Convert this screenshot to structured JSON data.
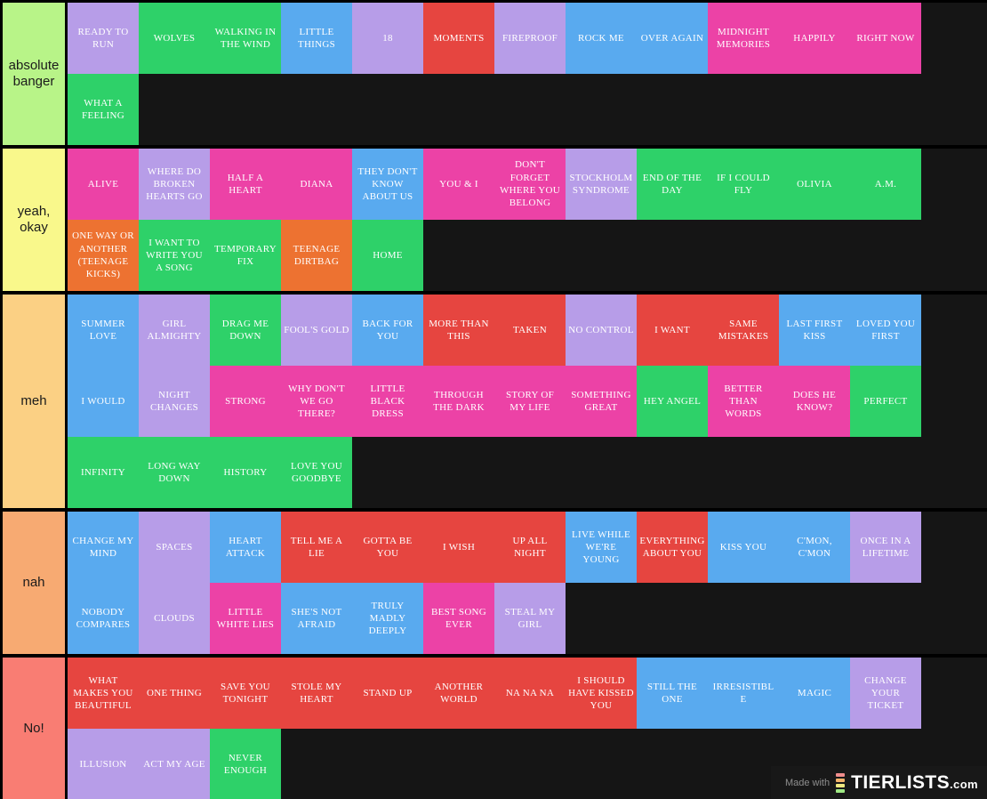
{
  "page": {
    "background": "#151515",
    "separator": "#000000"
  },
  "tile_colors": {
    "lavender": "#b79de8",
    "green": "#2ed169",
    "blue": "#59aaef",
    "pink": "#ec42a6",
    "red": "#e64540",
    "orange": "#ed7231"
  },
  "tiers": [
    {
      "label": "absolute banger",
      "color": "#b8f488",
      "tiles": [
        {
          "t": "READY TO RUN",
          "c": "lavender"
        },
        {
          "t": "WOLVES",
          "c": "green"
        },
        {
          "t": "WALKING IN THE WIND",
          "c": "green"
        },
        {
          "t": "LITTLE THINGS",
          "c": "blue"
        },
        {
          "t": "18",
          "c": "lavender"
        },
        {
          "t": "MOMENTS",
          "c": "red"
        },
        {
          "t": "FIREPROOF",
          "c": "lavender"
        },
        {
          "t": "ROCK ME",
          "c": "blue"
        },
        {
          "t": "OVER AGAIN",
          "c": "blue"
        },
        {
          "t": "MIDNIGHT MEMORIES",
          "c": "pink"
        },
        {
          "t": "HAPPILY",
          "c": "pink"
        },
        {
          "t": "RIGHT NOW",
          "c": "pink"
        },
        {
          "t": "WHAT A FEELING",
          "c": "green"
        }
      ]
    },
    {
      "label": "yeah, okay",
      "color": "#f9f88b",
      "tiles": [
        {
          "t": "ALIVE",
          "c": "pink"
        },
        {
          "t": "WHERE DO BROKEN HEARTS GO",
          "c": "lavender"
        },
        {
          "t": "HALF A HEART",
          "c": "pink"
        },
        {
          "t": "DIANA",
          "c": "pink"
        },
        {
          "t": "THEY DON'T KNOW ABOUT US",
          "c": "blue"
        },
        {
          "t": "YOU & I",
          "c": "pink"
        },
        {
          "t": "DON'T FORGET WHERE YOU BELONG",
          "c": "pink"
        },
        {
          "t": "STOCKHOLM SYNDROME",
          "c": "lavender"
        },
        {
          "t": "END OF THE DAY",
          "c": "green"
        },
        {
          "t": "IF I COULD FLY",
          "c": "green"
        },
        {
          "t": "OLIVIA",
          "c": "green"
        },
        {
          "t": "A.M.",
          "c": "green"
        },
        {
          "t": "ONE WAY OR ANOTHER (TEENAGE KICKS)",
          "c": "orange"
        },
        {
          "t": "I WANT TO WRITE YOU A SONG",
          "c": "green"
        },
        {
          "t": "TEMPORARY FIX",
          "c": "green"
        },
        {
          "t": "TEENAGE DIRTBAG",
          "c": "orange"
        },
        {
          "t": "HOME",
          "c": "green"
        }
      ]
    },
    {
      "label": "meh",
      "color": "#fbd084",
      "tiles": [
        {
          "t": "SUMMER LOVE",
          "c": "blue"
        },
        {
          "t": "GIRL ALMIGHTY",
          "c": "lavender"
        },
        {
          "t": "DRAG ME DOWN",
          "c": "green"
        },
        {
          "t": "FOOL'S GOLD",
          "c": "lavender"
        },
        {
          "t": "BACK FOR YOU",
          "c": "blue"
        },
        {
          "t": "MORE THAN THIS",
          "c": "red"
        },
        {
          "t": "TAKEN",
          "c": "red"
        },
        {
          "t": "NO CONTROL",
          "c": "lavender"
        },
        {
          "t": "I WANT",
          "c": "red"
        },
        {
          "t": "SAME MISTAKES",
          "c": "red"
        },
        {
          "t": "LAST FIRST KISS",
          "c": "blue"
        },
        {
          "t": "LOVED YOU FIRST",
          "c": "blue"
        },
        {
          "t": "I WOULD",
          "c": "blue"
        },
        {
          "t": "NIGHT CHANGES",
          "c": "lavender"
        },
        {
          "t": "STRONG",
          "c": "pink"
        },
        {
          "t": "WHY DON'T WE GO THERE?",
          "c": "pink"
        },
        {
          "t": "LITTLE BLACK DRESS",
          "c": "pink"
        },
        {
          "t": "THROUGH THE DARK",
          "c": "pink"
        },
        {
          "t": "STORY OF MY LIFE",
          "c": "pink"
        },
        {
          "t": "SOMETHING GREAT",
          "c": "pink"
        },
        {
          "t": "HEY ANGEL",
          "c": "green"
        },
        {
          "t": "BETTER THAN WORDS",
          "c": "pink"
        },
        {
          "t": "DOES HE KNOW?",
          "c": "pink"
        },
        {
          "t": "PERFECT",
          "c": "green"
        },
        {
          "t": "INFINITY",
          "c": "green"
        },
        {
          "t": "LONG WAY DOWN",
          "c": "green"
        },
        {
          "t": "HISTORY",
          "c": "green"
        },
        {
          "t": "LOVE YOU GOODBYE",
          "c": "green"
        }
      ]
    },
    {
      "label": "nah",
      "color": "#f7aa72",
      "tiles": [
        {
          "t": "CHANGE MY MIND",
          "c": "blue"
        },
        {
          "t": "SPACES",
          "c": "lavender"
        },
        {
          "t": "HEART ATTACK",
          "c": "blue"
        },
        {
          "t": "TELL ME A LIE",
          "c": "red"
        },
        {
          "t": "GOTTA BE YOU",
          "c": "red"
        },
        {
          "t": "I WISH",
          "c": "red"
        },
        {
          "t": "UP ALL NIGHT",
          "c": "red"
        },
        {
          "t": "LIVE WHILE WE'RE YOUNG",
          "c": "blue"
        },
        {
          "t": "EVERYTHING ABOUT YOU",
          "c": "red"
        },
        {
          "t": "KISS YOU",
          "c": "blue"
        },
        {
          "t": "C'MON, C'MON",
          "c": "blue"
        },
        {
          "t": "ONCE IN A LIFETIME",
          "c": "lavender"
        },
        {
          "t": "NOBODY COMPARES",
          "c": "blue"
        },
        {
          "t": "CLOUDS",
          "c": "lavender"
        },
        {
          "t": "LITTLE WHITE LIES",
          "c": "pink"
        },
        {
          "t": "SHE'S NOT AFRAID",
          "c": "blue"
        },
        {
          "t": "TRULY MADLY DEEPLY",
          "c": "blue"
        },
        {
          "t": "BEST SONG EVER",
          "c": "pink"
        },
        {
          "t": "STEAL MY GIRL",
          "c": "lavender"
        }
      ]
    },
    {
      "label": "No!",
      "color": "#f97d73",
      "tiles": [
        {
          "t": "WHAT MAKES YOU BEAUTIFUL",
          "c": "red"
        },
        {
          "t": "ONE THING",
          "c": "red"
        },
        {
          "t": "SAVE YOU TONIGHT",
          "c": "red"
        },
        {
          "t": "STOLE MY HEART",
          "c": "red"
        },
        {
          "t": "STAND UP",
          "c": "red"
        },
        {
          "t": "ANOTHER WORLD",
          "c": "red"
        },
        {
          "t": "NA NA NA",
          "c": "red"
        },
        {
          "t": "I SHOULD HAVE KISSED YOU",
          "c": "red"
        },
        {
          "t": "STILL THE ONE",
          "c": "blue"
        },
        {
          "t": "IRRESISTIBLE",
          "c": "blue"
        },
        {
          "t": "MAGIC",
          "c": "blue"
        },
        {
          "t": "CHANGE YOUR TICKET",
          "c": "lavender"
        },
        {
          "t": "ILLUSION",
          "c": "lavender"
        },
        {
          "t": "ACT MY AGE",
          "c": "lavender"
        },
        {
          "t": "NEVER ENOUGH",
          "c": "green"
        }
      ]
    }
  ],
  "watermark": {
    "made_with": "Made with",
    "brand": "TIERLISTS",
    "suffix": ".com",
    "icon_colors": [
      "#ef8d8d",
      "#f2b36a",
      "#efe77f",
      "#9fe883"
    ]
  }
}
